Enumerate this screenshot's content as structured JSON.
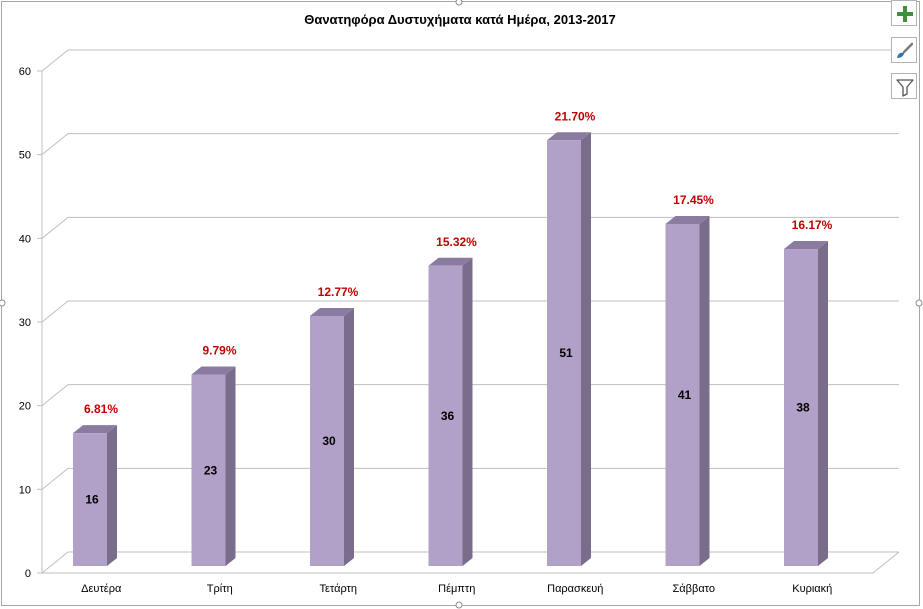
{
  "chart_data": {
    "type": "bar",
    "title": "Θανατηφόρα Δυστυχήματα κατά Ημέρα, 2013-2017",
    "xlabel": "",
    "ylabel": "",
    "categories": [
      "Δευτέρα",
      "Τρίτη",
      "Τετάρτη",
      "Πέμπτη",
      "Παρασκευή",
      "Σάββατο",
      "Κυριακή"
    ],
    "values": [
      16,
      23,
      30,
      36,
      51,
      41,
      38
    ],
    "percent_labels": [
      "6.81%",
      "9.79%",
      "12.77%",
      "15.32%",
      "21.70%",
      "17.45%",
      "16.17%"
    ],
    "ylim": [
      0,
      60
    ],
    "yticks": [
      "0",
      "10",
      "20",
      "30",
      "40",
      "50",
      "60"
    ],
    "grid": true,
    "legend": "none",
    "bar_color": "#b1a0c7",
    "bar_side_color": "#7a6d8c",
    "bar_top_color": "#8a7ca0",
    "percent_label_color": "#c00000"
  },
  "toolbar": {
    "elements_icon": "plus-icon",
    "styles_icon": "paintbrush-icon",
    "filters_icon": "funnel-icon"
  }
}
